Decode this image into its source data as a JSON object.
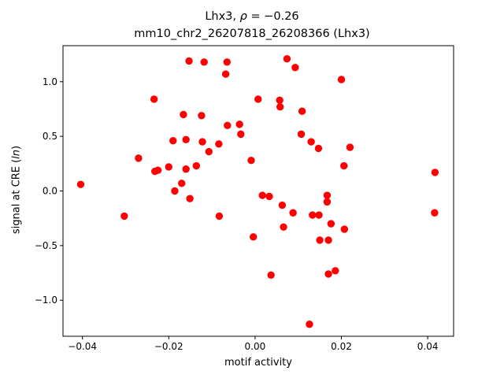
{
  "title": {
    "line1_prefix": "Lhx3, ",
    "line1_rho": "ρ",
    "line1_suffix": " = −0.26",
    "line2": "mm10_chr2_26207818_26208366 (Lhx3)"
  },
  "chart_data": {
    "type": "scatter",
    "title": "Lhx3, ρ = −0.26 / mm10_chr2_26207818_26208366 (Lhx3)",
    "xlabel": "motif activity",
    "ylabel_prefix": "signal at CRE (",
    "ylabel_italic": "ln",
    "ylabel_suffix": ")",
    "xlim": [
      -0.0445,
      0.046
    ],
    "ylim": [
      -1.33,
      1.33
    ],
    "xticks": [
      -0.04,
      -0.02,
      0.0,
      0.02,
      0.04
    ],
    "xtick_labels": [
      "−0.04",
      "−0.02",
      "0.00",
      "0.02",
      "0.04"
    ],
    "yticks": [
      -1.0,
      -0.5,
      0.0,
      0.5,
      1.0
    ],
    "ytick_labels": [
      "−1.0",
      "−0.5",
      "0.0",
      "0.5",
      "1.0"
    ],
    "grid": false,
    "marker_color": "#ff0000",
    "points": [
      {
        "x": -0.0404,
        "y": 0.06
      },
      {
        "x": -0.0303,
        "y": -0.23
      },
      {
        "x": -0.027,
        "y": 0.3
      },
      {
        "x": -0.0234,
        "y": 0.84
      },
      {
        "x": -0.0232,
        "y": 0.18
      },
      {
        "x": -0.0225,
        "y": 0.19
      },
      {
        "x": -0.02,
        "y": 0.22
      },
      {
        "x": -0.019,
        "y": 0.46
      },
      {
        "x": -0.0186,
        "y": 0.0
      },
      {
        "x": -0.017,
        "y": 0.07
      },
      {
        "x": -0.0166,
        "y": 0.7
      },
      {
        "x": -0.016,
        "y": 0.47
      },
      {
        "x": -0.016,
        "y": 0.2
      },
      {
        "x": -0.0153,
        "y": 1.19
      },
      {
        "x": -0.0151,
        "y": -0.07
      },
      {
        "x": -0.0136,
        "y": 0.23
      },
      {
        "x": -0.0124,
        "y": 0.69
      },
      {
        "x": -0.0122,
        "y": 0.45
      },
      {
        "x": -0.0118,
        "y": 1.18
      },
      {
        "x": -0.0107,
        "y": 0.36
      },
      {
        "x": -0.0084,
        "y": 0.43
      },
      {
        "x": -0.0083,
        "y": -0.23
      },
      {
        "x": -0.0068,
        "y": 1.07
      },
      {
        "x": -0.0065,
        "y": 1.18
      },
      {
        "x": -0.0064,
        "y": 0.6
      },
      {
        "x": -0.0036,
        "y": 0.61
      },
      {
        "x": -0.0033,
        "y": 0.52
      },
      {
        "x": -0.0009,
        "y": 0.28
      },
      {
        "x": -0.0004,
        "y": -0.42
      },
      {
        "x": 0.0007,
        "y": 0.84
      },
      {
        "x": 0.0017,
        "y": -0.04
      },
      {
        "x": 0.0033,
        "y": -0.05
      },
      {
        "x": 0.0037,
        "y": -0.77
      },
      {
        "x": 0.0057,
        "y": 0.83
      },
      {
        "x": 0.0058,
        "y": 0.77
      },
      {
        "x": 0.0063,
        "y": -0.13
      },
      {
        "x": 0.0066,
        "y": -0.33
      },
      {
        "x": 0.0074,
        "y": 1.21
      },
      {
        "x": 0.0088,
        "y": -0.2
      },
      {
        "x": 0.0093,
        "y": 1.13
      },
      {
        "x": 0.0107,
        "y": 0.52
      },
      {
        "x": 0.0109,
        "y": 0.73
      },
      {
        "x": 0.0126,
        "y": -1.22
      },
      {
        "x": 0.013,
        "y": 0.45
      },
      {
        "x": 0.0133,
        "y": -0.22
      },
      {
        "x": 0.0147,
        "y": 0.39
      },
      {
        "x": 0.0148,
        "y": -0.22
      },
      {
        "x": 0.015,
        "y": -0.45
      },
      {
        "x": 0.0167,
        "y": -0.04
      },
      {
        "x": 0.0167,
        "y": -0.1
      },
      {
        "x": 0.017,
        "y": -0.45
      },
      {
        "x": 0.017,
        "y": -0.76
      },
      {
        "x": 0.0176,
        "y": -0.3
      },
      {
        "x": 0.0186,
        "y": -0.73
      },
      {
        "x": 0.02,
        "y": 1.02
      },
      {
        "x": 0.0206,
        "y": 0.23
      },
      {
        "x": 0.0207,
        "y": -0.35
      },
      {
        "x": 0.022,
        "y": 0.4
      },
      {
        "x": 0.0417,
        "y": 0.17
      },
      {
        "x": 0.0416,
        "y": -0.2
      }
    ]
  }
}
